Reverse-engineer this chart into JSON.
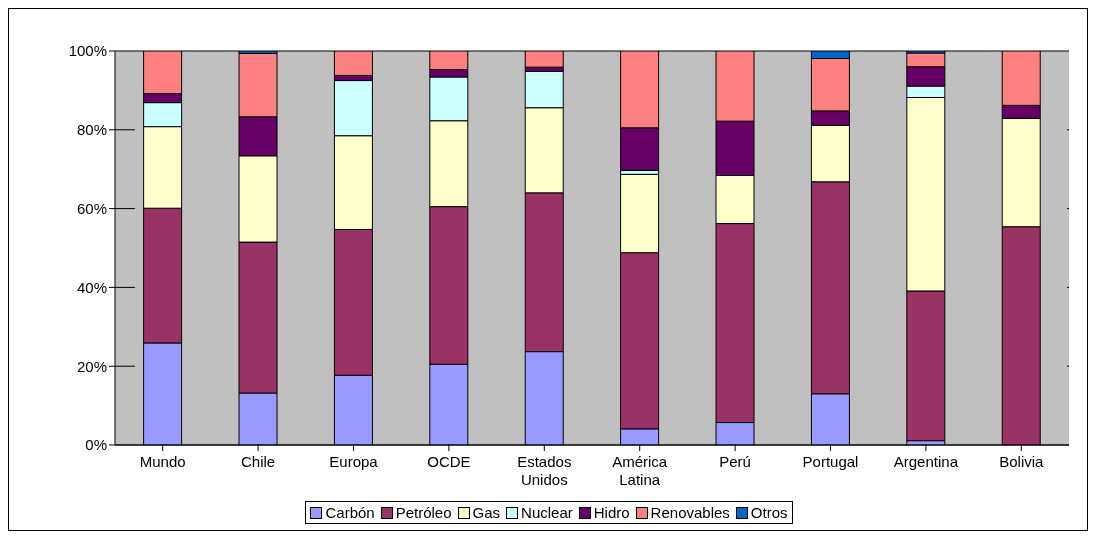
{
  "chart_data": {
    "type": "bar",
    "stacked": true,
    "categories": [
      "Mundo",
      "Chile",
      "Europa",
      "OCDE",
      "Estados Unidos",
      "América Latina",
      "Perú",
      "Portugal",
      "Argentina",
      "Bolivia"
    ],
    "series": [
      {
        "name": "Carbón",
        "color": "#9999ff",
        "values": [
          25.9,
          13.2,
          17.7,
          20.5,
          23.7,
          4.1,
          5.7,
          13,
          1.1,
          0
        ]
      },
      {
        "name": "Petróleo",
        "color": "#993366",
        "values": [
          34.2,
          38.3,
          37,
          40,
          40.3,
          44.7,
          50.5,
          53.8,
          38,
          55.4
        ]
      },
      {
        "name": "Gas",
        "color": "#ffffcc",
        "values": [
          20.7,
          21.9,
          23.8,
          21.8,
          21.6,
          19.9,
          12.2,
          14.3,
          49.1,
          27.5
        ]
      },
      {
        "name": "Nuclear",
        "color": "#ccffff",
        "values": [
          6.1,
          0,
          14,
          11.1,
          9.2,
          1,
          0,
          0,
          2.9,
          0
        ]
      },
      {
        "name": "Hidro",
        "color": "#660066",
        "values": [
          2.3,
          9.9,
          1.3,
          1.9,
          1.1,
          10.8,
          13.8,
          3.7,
          4.9,
          3.3
        ]
      },
      {
        "name": "Renovables",
        "color": "#ff8080",
        "values": [
          10.8,
          16.1,
          6.2,
          4.7,
          4.1,
          19.5,
          17.8,
          13.3,
          3.5,
          13.8
        ]
      },
      {
        "name": "Otros",
        "color": "#0066cc",
        "values": [
          0,
          0.6,
          0,
          0,
          0,
          0,
          0,
          1.9,
          0.5,
          0
        ]
      }
    ],
    "ylim": [
      0,
      100
    ],
    "yticks": [
      {
        "value": 0,
        "label": "0%"
      },
      {
        "value": 20,
        "label": "20%"
      },
      {
        "value": 40,
        "label": "40%"
      },
      {
        "value": 60,
        "label": "60%"
      },
      {
        "value": 80,
        "label": "80%"
      },
      {
        "value": 100,
        "label": "100%"
      }
    ],
    "grid": "y",
    "legend": "bottom"
  }
}
